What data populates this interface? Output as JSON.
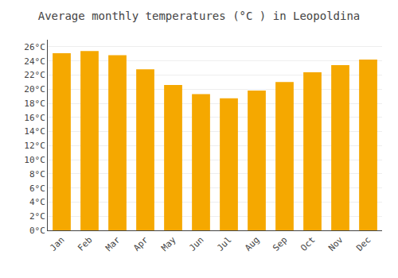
{
  "chart_data": {
    "type": "bar",
    "title": "Average monthly temperatures (°C ) in Leopoldina",
    "categories": [
      "Jan",
      "Feb",
      "Mar",
      "Apr",
      "May",
      "Jun",
      "Jul",
      "Aug",
      "Sep",
      "Oct",
      "Nov",
      "Dec"
    ],
    "values": [
      25.1,
      25.4,
      24.8,
      22.8,
      20.6,
      19.3,
      18.7,
      19.8,
      21.0,
      22.4,
      23.4,
      24.2
    ],
    "color": "#F5A800",
    "ylim": [
      0,
      27
    ],
    "yticks": [
      {
        "value": 0,
        "label": "0°C"
      },
      {
        "value": 2,
        "label": "2°C"
      },
      {
        "value": 4,
        "label": "4°C"
      },
      {
        "value": 6,
        "label": "6°C"
      },
      {
        "value": 8,
        "label": "8°C"
      },
      {
        "value": 10,
        "label": "10°C"
      },
      {
        "value": 12,
        "label": "12°C"
      },
      {
        "value": 14,
        "label": "14°C"
      },
      {
        "value": 16,
        "label": "16°C"
      },
      {
        "value": 18,
        "label": "18°C"
      },
      {
        "value": 20,
        "label": "20°C"
      },
      {
        "value": 22,
        "label": "22°C"
      },
      {
        "value": 24,
        "label": "24°C"
      },
      {
        "value": 26,
        "label": "26°C"
      }
    ],
    "grid": true
  }
}
